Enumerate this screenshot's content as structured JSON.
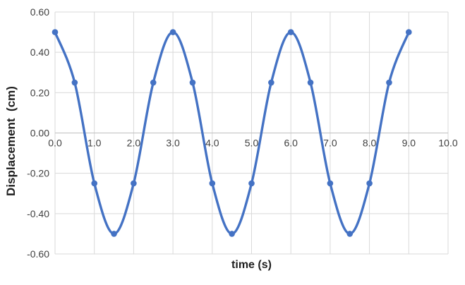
{
  "chart_data": {
    "type": "line",
    "title": "",
    "xlabel": "time (s)",
    "ylabel": "Displacement  (cm)",
    "series": [
      {
        "name": "displacement",
        "x": [
          0.0,
          0.5,
          1.0,
          1.5,
          2.0,
          2.5,
          3.0,
          3.5,
          4.0,
          4.5,
          5.0,
          5.5,
          6.0,
          6.5,
          7.0,
          7.5,
          8.0,
          8.5,
          9.0
        ],
        "values": [
          0.5,
          0.25,
          -0.25,
          -0.5,
          -0.25,
          0.25,
          0.5,
          0.25,
          -0.25,
          -0.5,
          -0.25,
          0.25,
          0.5,
          0.25,
          -0.25,
          -0.5,
          -0.25,
          0.25,
          0.5
        ]
      }
    ],
    "xlim": [
      0,
      10
    ],
    "ylim": [
      -0.6,
      0.6
    ],
    "x_ticks": [
      "0.0",
      "1.0",
      "2.0",
      "3.0",
      "4.0",
      "5.0",
      "6.0",
      "7.0",
      "8.0",
      "9.0",
      "10.0"
    ],
    "y_ticks": [
      "0.60",
      "0.40",
      "0.20",
      "0.00",
      "-0.20",
      "-0.40",
      "-0.60"
    ],
    "grid": true,
    "smooth_line": true,
    "markers": "circle",
    "legend_position": "none",
    "colors": {
      "line": "#4472C4",
      "marker": "#4472C4",
      "gridline": "#D9D9D9",
      "axis_line": "#BFBFBF",
      "tick_text": "#404040",
      "title_text": "#1f1f1f",
      "background": "#FFFFFF"
    }
  }
}
